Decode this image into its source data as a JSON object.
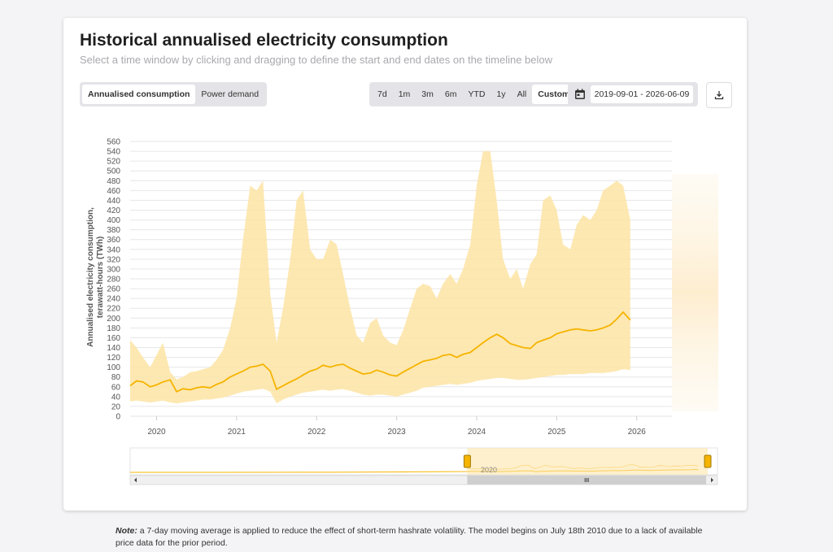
{
  "header": {
    "title": "Historical annualised electricity consumption",
    "subtitle": "Select a time window by clicking and dragging to define the start and end dates on the timeline below"
  },
  "view_toggle": [
    {
      "label": "Annualised consumption",
      "active": true
    },
    {
      "label": "Power demand",
      "active": false
    }
  ],
  "range_buttons": [
    {
      "label": "7d",
      "active": false
    },
    {
      "label": "1m",
      "active": false
    },
    {
      "label": "3m",
      "active": false
    },
    {
      "label": "6m",
      "active": false
    },
    {
      "label": "YTD",
      "active": false
    },
    {
      "label": "1y",
      "active": false
    },
    {
      "label": "All",
      "active": false
    },
    {
      "label": "Custom",
      "active": true
    }
  ],
  "date_range": {
    "value": "2019-09-01 - 2026-06-09",
    "icon": "calendar-icon"
  },
  "download": {
    "icon": "download-icon"
  },
  "navigator": {
    "label": "2020"
  },
  "note": {
    "label": "Note:",
    "text": " a 7-day moving average is applied to reduce the effect of short-term hashrate volatility. The model begins on July 18th 2010 due to a lack of available price data for the prior period."
  },
  "colors": {
    "line": "#f5b400",
    "band": "#fde4a4",
    "grid": "#e6e6e6"
  },
  "chart_data": {
    "type": "area",
    "ylabel": "Annualised electricity consumption, terawatt-hours (TWh)",
    "xlabel": "",
    "ylim": [
      0,
      560
    ],
    "xlim": [
      2019.67,
      2026.44
    ],
    "y_ticks": [
      0,
      20,
      40,
      60,
      80,
      100,
      120,
      140,
      160,
      180,
      200,
      220,
      240,
      260,
      280,
      300,
      320,
      340,
      360,
      380,
      400,
      420,
      440,
      460,
      480,
      500,
      520,
      540,
      560
    ],
    "x_ticks": [
      "2020",
      "2021",
      "2022",
      "2023",
      "2024",
      "2025",
      "2026"
    ],
    "grid": true,
    "legend": "none",
    "series": [
      {
        "name": "",
        "x": [
          2019.67,
          2019.75,
          2019.83,
          2019.92,
          2020.0,
          2020.08,
          2020.17,
          2020.25,
          2020.33,
          2020.42,
          2020.5,
          2020.58,
          2020.67,
          2020.75,
          2020.83,
          2020.92,
          2021.0,
          2021.08,
          2021.17,
          2021.25,
          2021.33,
          2021.42,
          2021.5,
          2021.58,
          2021.67,
          2021.75,
          2021.83,
          2021.92,
          2022.0,
          2022.08,
          2022.17,
          2022.25,
          2022.33,
          2022.42,
          2022.5,
          2022.58,
          2022.67,
          2022.75,
          2022.83,
          2022.92,
          2023.0,
          2023.08,
          2023.17,
          2023.25,
          2023.33,
          2023.42,
          2023.5,
          2023.58,
          2023.67,
          2023.75,
          2023.83,
          2023.92,
          2024.0,
          2024.08,
          2024.17,
          2024.25,
          2024.33,
          2024.42,
          2024.5,
          2024.58,
          2024.67,
          2024.75,
          2024.83,
          2024.92,
          2025.0,
          2025.08,
          2025.17,
          2025.25,
          2025.33,
          2025.42,
          2025.5,
          2025.58,
          2025.67,
          2025.75,
          2025.83,
          2025.92
        ],
        "values": [
          62,
          72,
          70,
          60,
          64,
          70,
          74,
          50,
          56,
          54,
          58,
          60,
          58,
          65,
          70,
          80,
          86,
          92,
          100,
          102,
          106,
          92,
          55,
          62,
          70,
          76,
          84,
          92,
          96,
          104,
          100,
          104,
          106,
          98,
          92,
          86,
          88,
          94,
          90,
          84,
          82,
          90,
          98,
          105,
          112,
          115,
          118,
          124,
          126,
          120,
          126,
          130,
          140,
          150,
          160,
          167,
          160,
          148,
          144,
          140,
          138,
          150,
          155,
          160,
          168,
          172,
          176,
          178,
          176,
          174,
          176,
          180,
          186,
          198,
          212,
          196
        ]
      },
      {
        "name": "",
        "x": [
          2019.67,
          2019.75,
          2019.83,
          2019.92,
          2020.0,
          2020.08,
          2020.17,
          2020.25,
          2020.33,
          2020.42,
          2020.5,
          2020.58,
          2020.67,
          2020.75,
          2020.83,
          2020.92,
          2021.0,
          2021.08,
          2021.17,
          2021.25,
          2021.33,
          2021.42,
          2021.5,
          2021.58,
          2021.67,
          2021.75,
          2021.83,
          2021.92,
          2022.0,
          2022.08,
          2022.17,
          2022.25,
          2022.33,
          2022.42,
          2022.5,
          2022.58,
          2022.67,
          2022.75,
          2022.83,
          2022.92,
          2023.0,
          2023.08,
          2023.17,
          2023.25,
          2023.33,
          2023.42,
          2023.5,
          2023.58,
          2023.67,
          2023.75,
          2023.83,
          2023.92,
          2024.0,
          2024.08,
          2024.17,
          2024.25,
          2024.33,
          2024.42,
          2024.5,
          2024.58,
          2024.67,
          2024.75,
          2024.83,
          2024.92,
          2025.0,
          2025.08,
          2025.17,
          2025.25,
          2025.33,
          2025.42,
          2025.5,
          2025.58,
          2025.67,
          2025.75,
          2025.83,
          2025.92
        ],
        "values": [
          155,
          140,
          120,
          100,
          125,
          150,
          90,
          75,
          80,
          90,
          92,
          96,
          100,
          115,
          135,
          180,
          240,
          360,
          470,
          460,
          480,
          250,
          150,
          220,
          320,
          440,
          460,
          340,
          320,
          320,
          360,
          350,
          290,
          220,
          165,
          150,
          190,
          200,
          165,
          150,
          145,
          175,
          220,
          260,
          270,
          265,
          240,
          270,
          290,
          270,
          300,
          350,
          470,
          540,
          540,
          440,
          320,
          280,
          300,
          260,
          310,
          330,
          440,
          450,
          420,
          350,
          340,
          390,
          410,
          400,
          420,
          460,
          470,
          480,
          470,
          400
        ]
      },
      {
        "name": "",
        "x": [
          2019.67,
          2019.75,
          2019.83,
          2019.92,
          2020.0,
          2020.08,
          2020.17,
          2020.25,
          2020.33,
          2020.42,
          2020.5,
          2020.58,
          2020.67,
          2020.75,
          2020.83,
          2020.92,
          2021.0,
          2021.08,
          2021.17,
          2021.25,
          2021.33,
          2021.42,
          2021.5,
          2021.58,
          2021.67,
          2021.75,
          2021.83,
          2021.92,
          2022.0,
          2022.08,
          2022.17,
          2022.25,
          2022.33,
          2022.42,
          2022.5,
          2022.58,
          2022.67,
          2022.75,
          2022.83,
          2022.92,
          2023.0,
          2023.08,
          2023.17,
          2023.25,
          2023.33,
          2023.42,
          2023.5,
          2023.58,
          2023.67,
          2023.75,
          2023.83,
          2023.92,
          2024.0,
          2024.08,
          2024.17,
          2024.25,
          2024.33,
          2024.42,
          2024.5,
          2024.58,
          2024.67,
          2024.75,
          2024.83,
          2024.92,
          2025.0,
          2025.08,
          2025.17,
          2025.25,
          2025.33,
          2025.42,
          2025.5,
          2025.58,
          2025.67,
          2025.75,
          2025.83,
          2025.92
        ],
        "values": [
          30,
          32,
          30,
          28,
          30,
          32,
          28,
          26,
          28,
          30,
          32,
          34,
          34,
          36,
          38,
          42,
          46,
          50,
          52,
          54,
          56,
          50,
          26,
          34,
          40,
          44,
          48,
          50,
          52,
          54,
          52,
          54,
          55,
          52,
          48,
          44,
          42,
          44,
          44,
          42,
          40,
          44,
          48,
          52,
          58,
          60,
          62,
          64,
          66,
          64,
          66,
          68,
          72,
          74,
          76,
          78,
          78,
          76,
          74,
          74,
          76,
          78,
          80,
          82,
          84,
          84,
          86,
          86,
          86,
          88,
          88,
          88,
          90,
          92,
          96,
          94
        ]
      }
    ]
  }
}
